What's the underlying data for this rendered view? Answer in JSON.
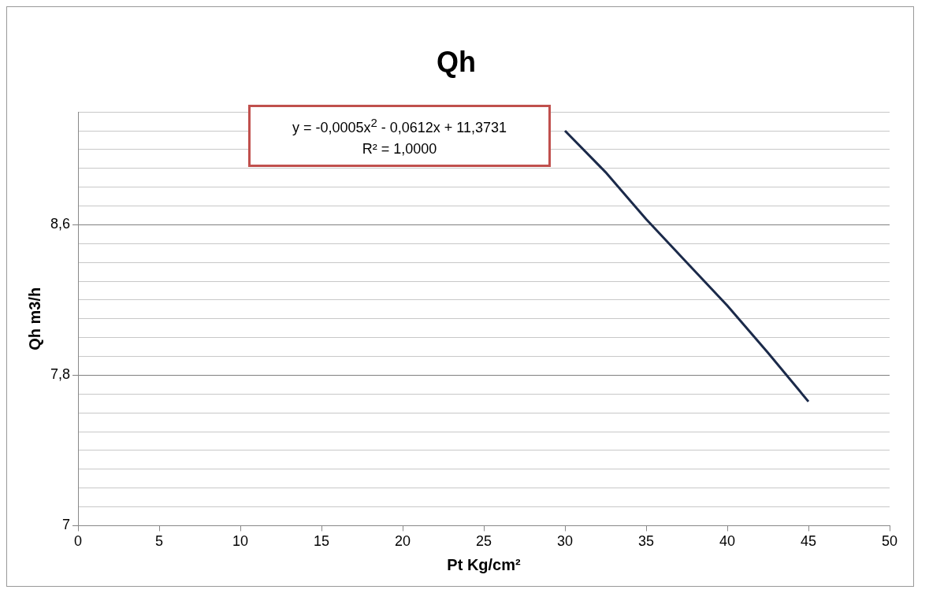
{
  "chart_data": {
    "type": "line",
    "title": "Qh",
    "xlabel": "Pt Kg/cm²",
    "ylabel": "Qh m3/h",
    "annotations": [
      "y = -0,0005x$^{2}$ - 0,0612x + 11,3731",
      "R² = 1,0000"
    ],
    "series": [
      {
        "color": "#1b2a4a",
        "x": [
          30,
          32.5,
          35,
          37.5,
          40,
          42.5,
          45
        ],
        "values": [
          9.1,
          8.88,
          8.63,
          8.4,
          8.17,
          7.92,
          7.66
        ]
      }
    ],
    "xlim": [
      0,
      50
    ],
    "xticks": [
      0,
      5,
      10,
      15,
      20,
      25,
      30,
      35,
      40,
      45,
      50
    ],
    "ylim": [
      7,
      9.2
    ],
    "yticks": [
      7,
      {
        "value": 7.1,
        "label": null
      },
      {
        "value": 7.2,
        "label": null
      },
      {
        "value": 7.3,
        "label": null
      },
      {
        "value": 7.4,
        "label": null
      },
      {
        "value": 7.5,
        "label": null
      },
      {
        "value": 7.6,
        "label": null
      },
      {
        "value": 7.7,
        "label": null
      },
      {
        "value": 7.8,
        "label": "7,8"
      },
      {
        "value": 7.9,
        "label": null
      },
      {
        "value": 8.0,
        "label": null
      },
      {
        "value": 8.1,
        "label": null
      },
      {
        "value": 8.2,
        "label": null
      },
      {
        "value": 8.3,
        "label": null
      },
      {
        "value": 8.4,
        "label": null
      },
      {
        "value": 8.5,
        "label": null
      },
      {
        "value": 8.6,
        "label": "8,6"
      },
      {
        "value": 8.7,
        "label": null
      },
      {
        "value": 8.8,
        "label": null
      },
      {
        "value": 8.9,
        "label": null
      },
      {
        "value": 9.0,
        "label": null
      },
      {
        "value": 9.1,
        "label": null
      },
      {
        "value": 9.2,
        "label": null
      }
    ],
    "grid": "y",
    "marker": "none",
    "line_style": "solid",
    "legend": false
  }
}
